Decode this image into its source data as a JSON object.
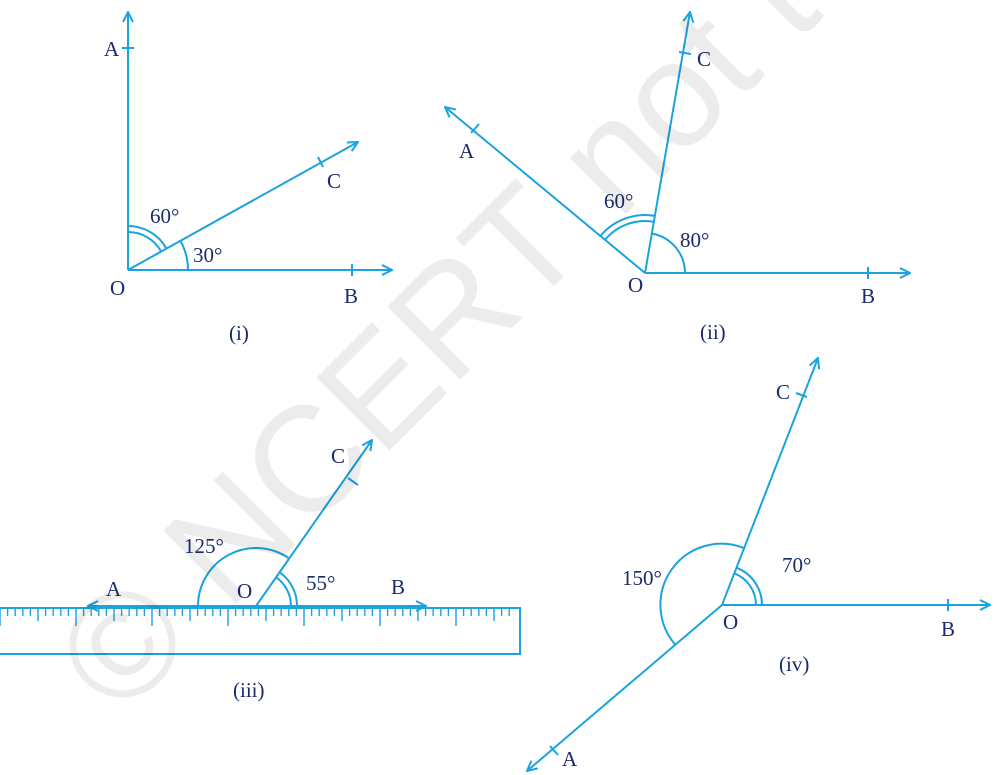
{
  "colors": {
    "line": "#1ba3df",
    "text": "#1a2a6c"
  },
  "watermark": {
    "text": "© NCERT not to be republished"
  },
  "figures": [
    {
      "caption": "(i)",
      "points": {
        "O": "O",
        "A": "A",
        "B": "B",
        "C": "C"
      },
      "angles": [
        {
          "label": "60°"
        },
        {
          "label": "30°"
        }
      ]
    },
    {
      "caption": "(ii)",
      "points": {
        "O": "O",
        "A": "A",
        "B": "B",
        "C": "C"
      },
      "angles": [
        {
          "label": "60°"
        },
        {
          "label": "80°"
        }
      ]
    },
    {
      "caption": "(iii)",
      "points": {
        "O": "O",
        "A": "A",
        "B": "B",
        "C": "C"
      },
      "angles": [
        {
          "label": "125°"
        },
        {
          "label": "55°"
        }
      ]
    },
    {
      "caption": "(iv)",
      "points": {
        "O": "O",
        "A": "A",
        "B": "B",
        "C": "C"
      },
      "angles": [
        {
          "label": "150°"
        },
        {
          "label": "70°"
        }
      ]
    }
  ]
}
